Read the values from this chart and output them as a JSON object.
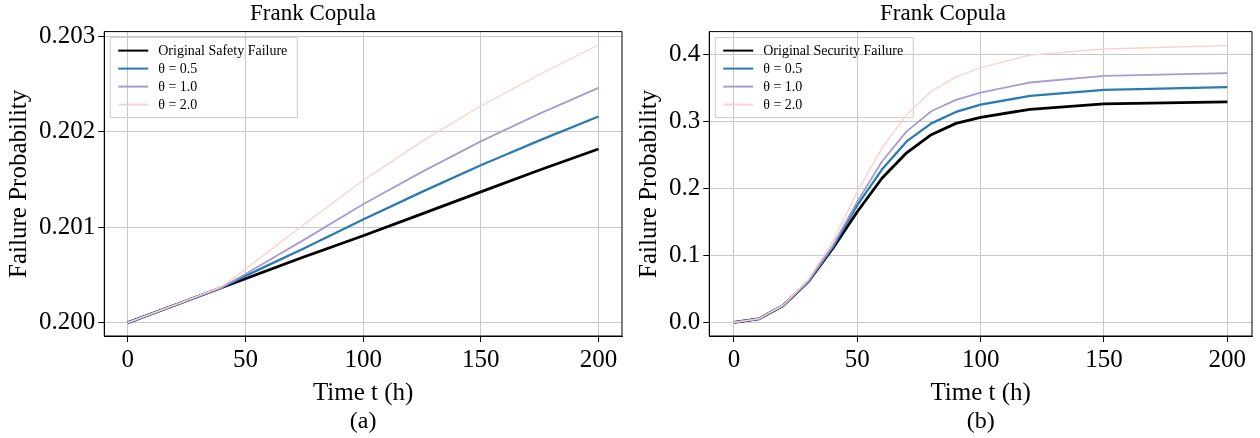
{
  "chart_data": [
    {
      "type": "line",
      "title": "Frank Copula",
      "xlabel": "Time t (h)",
      "ylabel": "Failure Probability",
      "annotations": [
        "(a)"
      ],
      "x": [
        0,
        25,
        40,
        50,
        75,
        100,
        125,
        150,
        175,
        200
      ],
      "series": [
        {
          "name": "Original Safety Failure",
          "color": "#000000",
          "values": [
            0.2,
            0.20023,
            0.20037,
            0.20046,
            0.20069,
            0.20091,
            0.20114,
            0.20137,
            0.2016,
            0.20182
          ]
        },
        {
          "name": "θ = 0.5",
          "color": "#2b7bb3",
          "values": [
            0.2,
            0.20023,
            0.20037,
            0.20049,
            0.20078,
            0.20108,
            0.20137,
            0.20165,
            0.20191,
            0.20216
          ]
        },
        {
          "name": "θ = 1.0",
          "color": "#a99bd2",
          "values": [
            0.2,
            0.20023,
            0.20037,
            0.20051,
            0.20087,
            0.20124,
            0.20158,
            0.2019,
            0.20219,
            0.20246
          ]
        },
        {
          "name": "θ = 2.0",
          "color": "#fbd0cb",
          "values": [
            0.2,
            0.20023,
            0.20038,
            0.20056,
            0.20103,
            0.20149,
            0.2019,
            0.20227,
            0.2026,
            0.20291
          ]
        }
      ],
      "xlim": [
        -10,
        210
      ],
      "xticks": [
        0,
        50,
        100,
        150,
        200
      ],
      "ylim": [
        0.19986,
        0.20305
      ],
      "yticks": [
        {
          "value": 0.2,
          "label": "0.200"
        },
        0.201,
        0.202,
        0.203
      ],
      "grid": true,
      "legend": "top left"
    },
    {
      "type": "line",
      "title": "Frank Copula",
      "xlabel": "Time t (h)",
      "ylabel": "Failure Probability",
      "annotations": [
        "(b)"
      ],
      "x": [
        0,
        10,
        20,
        30,
        40,
        50,
        60,
        70,
        80,
        90,
        100,
        120,
        150,
        200
      ],
      "series": [
        {
          "name": "Original Security Failure",
          "color": "#000000",
          "values": [
            0,
            0.005,
            0.025,
            0.06,
            0.11,
            0.165,
            0.215,
            0.253,
            0.28,
            0.297,
            0.306,
            0.318,
            0.326,
            0.329
          ]
        },
        {
          "name": "θ = 0.5",
          "color": "#2b7bb3",
          "values": [
            0,
            0.005,
            0.025,
            0.06,
            0.112,
            0.175,
            0.228,
            0.27,
            0.297,
            0.314,
            0.325,
            0.338,
            0.347,
            0.351
          ]
        },
        {
          "name": "θ = 1.0",
          "color": "#a99bd2",
          "values": [
            0,
            0.005,
            0.025,
            0.061,
            0.114,
            0.18,
            0.24,
            0.285,
            0.315,
            0.332,
            0.343,
            0.358,
            0.368,
            0.372
          ]
        },
        {
          "name": "θ = 2.0",
          "color": "#fbd0cb",
          "values": [
            0,
            0.005,
            0.026,
            0.063,
            0.12,
            0.195,
            0.26,
            0.31,
            0.345,
            0.366,
            0.38,
            0.399,
            0.408,
            0.413
          ]
        }
      ],
      "xlim": [
        -10,
        210
      ],
      "xticks": [
        0,
        50,
        100,
        150,
        200
      ],
      "ylim": [
        -0.0205,
        0.434
      ],
      "yticks": [
        {
          "value": 0,
          "label": "0.0"
        },
        0.1,
        0.2,
        0.3,
        0.4
      ],
      "grid": true,
      "legend": "top left"
    }
  ]
}
